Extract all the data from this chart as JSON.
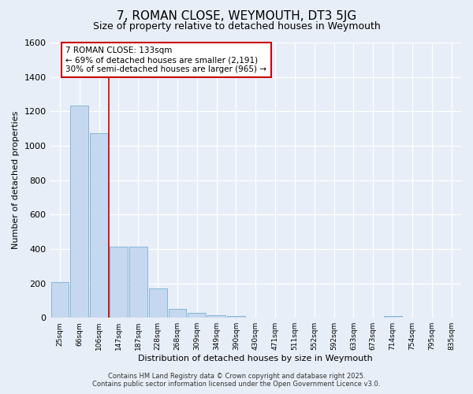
{
  "title": "7, ROMAN CLOSE, WEYMOUTH, DT3 5JG",
  "subtitle": "Size of property relative to detached houses in Weymouth",
  "xlabel": "Distribution of detached houses by size in Weymouth",
  "ylabel": "Number of detached properties",
  "categories": [
    "25sqm",
    "66sqm",
    "106sqm",
    "147sqm",
    "187sqm",
    "228sqm",
    "268sqm",
    "309sqm",
    "349sqm",
    "390sqm",
    "430sqm",
    "471sqm",
    "511sqm",
    "552sqm",
    "592sqm",
    "633sqm",
    "673sqm",
    "714sqm",
    "754sqm",
    "795sqm",
    "835sqm"
  ],
  "values": [
    205,
    1235,
    1075,
    415,
    415,
    170,
    50,
    28,
    15,
    10,
    0,
    0,
    0,
    0,
    0,
    0,
    0,
    8,
    0,
    0,
    0
  ],
  "bar_color": "#c5d8f0",
  "bar_edge_color": "#7bafd4",
  "background_color": "#e8eef8",
  "grid_color": "#d0daea",
  "red_line_x": 2.5,
  "annotation_line1": "7 ROMAN CLOSE: 133sqm",
  "annotation_line2": "← 69% of detached houses are smaller (2,191)",
  "annotation_line3": "30% of semi-detached houses are larger (965) →",
  "annotation_box_color": "#ffffff",
  "annotation_box_edge": "#cc0000",
  "ylim": [
    0,
    1600
  ],
  "yticks": [
    0,
    200,
    400,
    600,
    800,
    1000,
    1200,
    1400,
    1600
  ],
  "footer_line1": "Contains HM Land Registry data © Crown copyright and database right 2025.",
  "footer_line2": "Contains public sector information licensed under the Open Government Licence v3.0."
}
